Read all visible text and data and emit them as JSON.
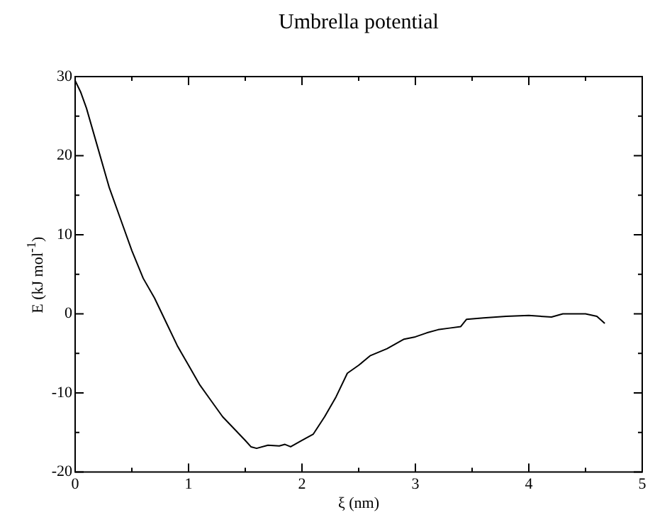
{
  "chart_data": {
    "type": "line",
    "title": "Umbrella potential",
    "xlabel": "ξ (nm)",
    "ylabel": "E (kJ mol$^{-1}$)",
    "xlim": [
      0,
      5
    ],
    "ylim": [
      -20,
      30
    ],
    "xticks": [
      0,
      {
        "value": 0.5,
        "label": null
      },
      1,
      {
        "value": 1.5,
        "label": null
      },
      2,
      {
        "value": 2.5,
        "label": null
      },
      3,
      {
        "value": 3.5,
        "label": null
      },
      4,
      {
        "value": 4.5,
        "label": null
      },
      5
    ],
    "yticks": [
      -20,
      {
        "value": -15,
        "label": null
      },
      -10,
      {
        "value": -5,
        "label": null
      },
      0,
      {
        "value": 5,
        "label": null
      },
      10,
      {
        "value": 15,
        "label": null
      },
      20,
      {
        "value": 25,
        "label": null
      },
      30
    ],
    "grid": false,
    "legend": false,
    "marker": "none",
    "line_style": "solid",
    "series": [
      {
        "color": "#000000",
        "x": [
          0,
          0.05,
          0.1,
          0.2,
          0.3,
          0.4,
          0.5,
          0.6,
          0.7,
          0.8,
          0.9,
          1.0,
          1.1,
          1.2,
          1.3,
          1.4,
          1.5,
          1.55,
          1.6,
          1.7,
          1.8,
          1.85,
          1.9,
          2.0,
          2.1,
          2.2,
          2.3,
          2.4,
          2.5,
          2.6,
          2.75,
          2.8,
          2.9,
          3.0,
          3.1,
          3.2,
          3.3,
          3.4,
          3.45,
          3.6,
          3.8,
          4.0,
          4.2,
          4.3,
          4.5,
          4.6,
          4.67
        ],
        "values": [
          29.5,
          28,
          26,
          21,
          16,
          12,
          8,
          4.5,
          2,
          -1,
          -4,
          -6.5,
          -9,
          -11,
          -13,
          -14.5,
          -16,
          -16.8,
          -17,
          -16.6,
          -16.7,
          -16.5,
          -16.8,
          -16,
          -15.2,
          -13,
          -10.5,
          -7.5,
          -6.5,
          -5.3,
          -4.4,
          -4,
          -3.2,
          -2.9,
          -2.4,
          -2,
          -1.8,
          -1.6,
          -0.7,
          -0.5,
          -0.3,
          -0.2,
          -0.4,
          0,
          0,
          -0.3,
          -1.2
        ]
      }
    ]
  }
}
